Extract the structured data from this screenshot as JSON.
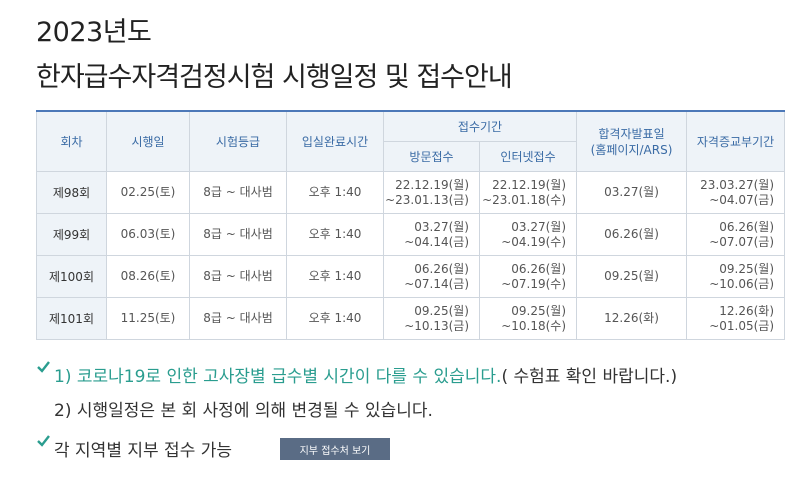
{
  "header": {
    "year": "2023년도",
    "title": "한자급수자격검정시험 시행일정 및 접수안내"
  },
  "table": {
    "headers": {
      "round": "회차",
      "exam_date": "시행일",
      "grade": "시험등급",
      "entry_time": "입실완료시간",
      "reception": "접수기간",
      "visit": "방문접수",
      "internet": "인터넷접수",
      "result": "합격자발표일\n(홈페이지/ARS)",
      "certificate": "자격증교부기간"
    },
    "rows": [
      {
        "round": "제98회",
        "exam_date": "02.25(토)",
        "grade": "8급 ~ 대사범",
        "entry_time": "오후 1:40",
        "visit": "22.12.19(월)\n~23.01.13(금)",
        "internet": "22.12.19(월)\n~23.01.18(수)",
        "result": "03.27(월)",
        "certificate": "23.03.27(월)\n~04.07(금)"
      },
      {
        "round": "제99회",
        "exam_date": "06.03(토)",
        "grade": "8급 ~ 대사범",
        "entry_time": "오후 1:40",
        "visit": "03.27(월)\n~04.14(금)",
        "internet": "03.27(월)\n~04.19(수)",
        "result": "06.26(월)",
        "certificate": "06.26(월)\n~07.07(금)"
      },
      {
        "round": "제100회",
        "exam_date": "08.26(토)",
        "grade": "8급 ~ 대사범",
        "entry_time": "오후 1:40",
        "visit": "06.26(월)\n~07.14(금)",
        "internet": "06.26(월)\n~07.19(수)",
        "result": "09.25(월)",
        "certificate": "09.25(월)\n~10.06(금)"
      },
      {
        "round": "제101회",
        "exam_date": "11.25(토)",
        "grade": "8급 ~ 대사범",
        "entry_time": "오후 1:40",
        "visit": "09.25(월)\n~10.13(금)",
        "internet": "09.25(월)\n~10.18(수)",
        "result": "12.26(화)",
        "certificate": "12.26(화)\n~01.05(금)"
      }
    ]
  },
  "notes": {
    "note1_highlight": "1) 코로나19로 인한 고사장별 급수별 시간이 다를 수 있습니다.",
    "note1_tail": "( 수험표 확인 바랍니다.)",
    "note2": "2) 시행일정은 본 회 사정에 의해 변경될 수 있습니다.",
    "note3": "각 지역별 지부 접수 가능",
    "branch_button": "지부 접수처 보기"
  },
  "colors": {
    "accent": "#4c78b8",
    "header_bg": "#eef3f8",
    "highlight_text": "#2a9d8f",
    "button_bg": "#5a6c85"
  }
}
